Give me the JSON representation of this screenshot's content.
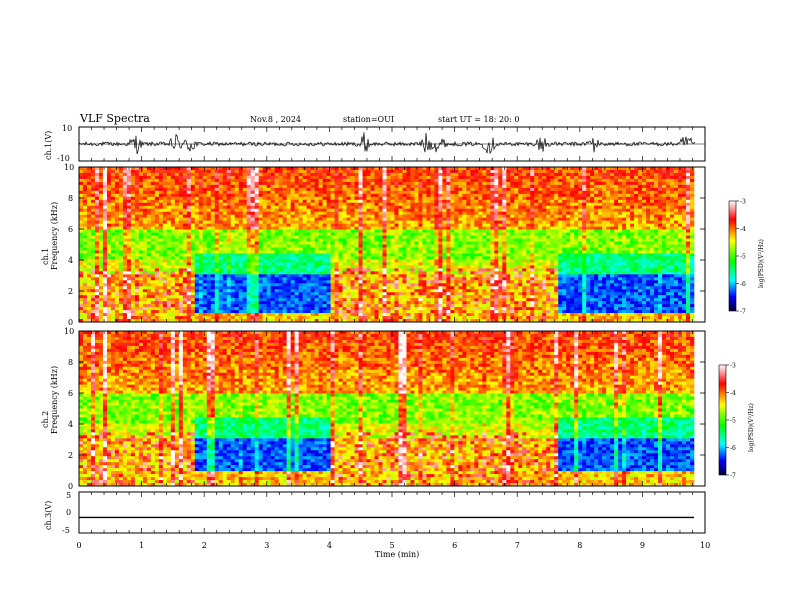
{
  "header": {
    "title": "VLF Spectra",
    "date": "Nov.8 , 2024",
    "station": "station=OUI",
    "start": "start UT =  18: 20: 0"
  },
  "colorbar": {
    "ticks": [
      "-3",
      "-4",
      "-5",
      "-6",
      "-7"
    ],
    "label": "log(PSD)(V²/Hz)",
    "colors": [
      "#ffffff",
      "#ff0000",
      "#ffff00",
      "#00ff00",
      "#00ffff",
      "#0000ff",
      "#000033"
    ]
  },
  "chart_data": [
    {
      "type": "line",
      "panel": "ch1-waveform",
      "ylabel": "ch.1(V)",
      "ylim": [
        -10,
        10
      ],
      "yticks": [
        "10",
        "-10"
      ],
      "xlim": [
        0,
        10
      ],
      "description_units": "V",
      "bursts_min": [
        0.9,
        1.55,
        1.78,
        4.55,
        5.55,
        5.75,
        6.55,
        7.4,
        8.2,
        9.7
      ]
    },
    {
      "type": "heatmap",
      "panel": "ch1-spectrogram",
      "ylabel": "ch.1\nFrequency (kHz)",
      "ylim": [
        0,
        10
      ],
      "yticks": [
        "0",
        "2",
        "4",
        "6",
        "8",
        "10"
      ],
      "xlim": [
        0,
        10
      ],
      "segments_min": [
        [
          0,
          1.85
        ],
        [
          1.85,
          4.0
        ],
        [
          4.0,
          6.4
        ],
        [
          6.4,
          7.6
        ],
        [
          7.6,
          9.8
        ]
      ],
      "quiet_band_khz": [
        0.5,
        3.0
      ]
    },
    {
      "type": "heatmap",
      "panel": "ch2-spectrogram",
      "ylabel": "ch.2\nFrequency (kHz)",
      "ylim": [
        0,
        10
      ],
      "yticks": [
        "0",
        "2",
        "4",
        "6",
        "8",
        "10"
      ],
      "xlim": [
        0,
        10
      ],
      "segments_min": [
        [
          0,
          1.85
        ],
        [
          1.85,
          4.0
        ],
        [
          4.0,
          6.4
        ],
        [
          6.4,
          7.6
        ],
        [
          7.6,
          9.8
        ]
      ],
      "quiet_band_khz": [
        1.0,
        3.0
      ]
    },
    {
      "type": "line",
      "panel": "ch3-waveform",
      "ylabel": "ch.3(V)",
      "ylim": [
        -5,
        5
      ],
      "yticks": [
        "5",
        "0",
        "-5"
      ],
      "xlim": [
        0,
        10
      ],
      "value": -1.2
    }
  ],
  "xaxis": {
    "label": "Time (min)",
    "ticks": [
      "0",
      "1",
      "2",
      "3",
      "4",
      "5",
      "6",
      "7",
      "8",
      "9",
      "10"
    ]
  }
}
